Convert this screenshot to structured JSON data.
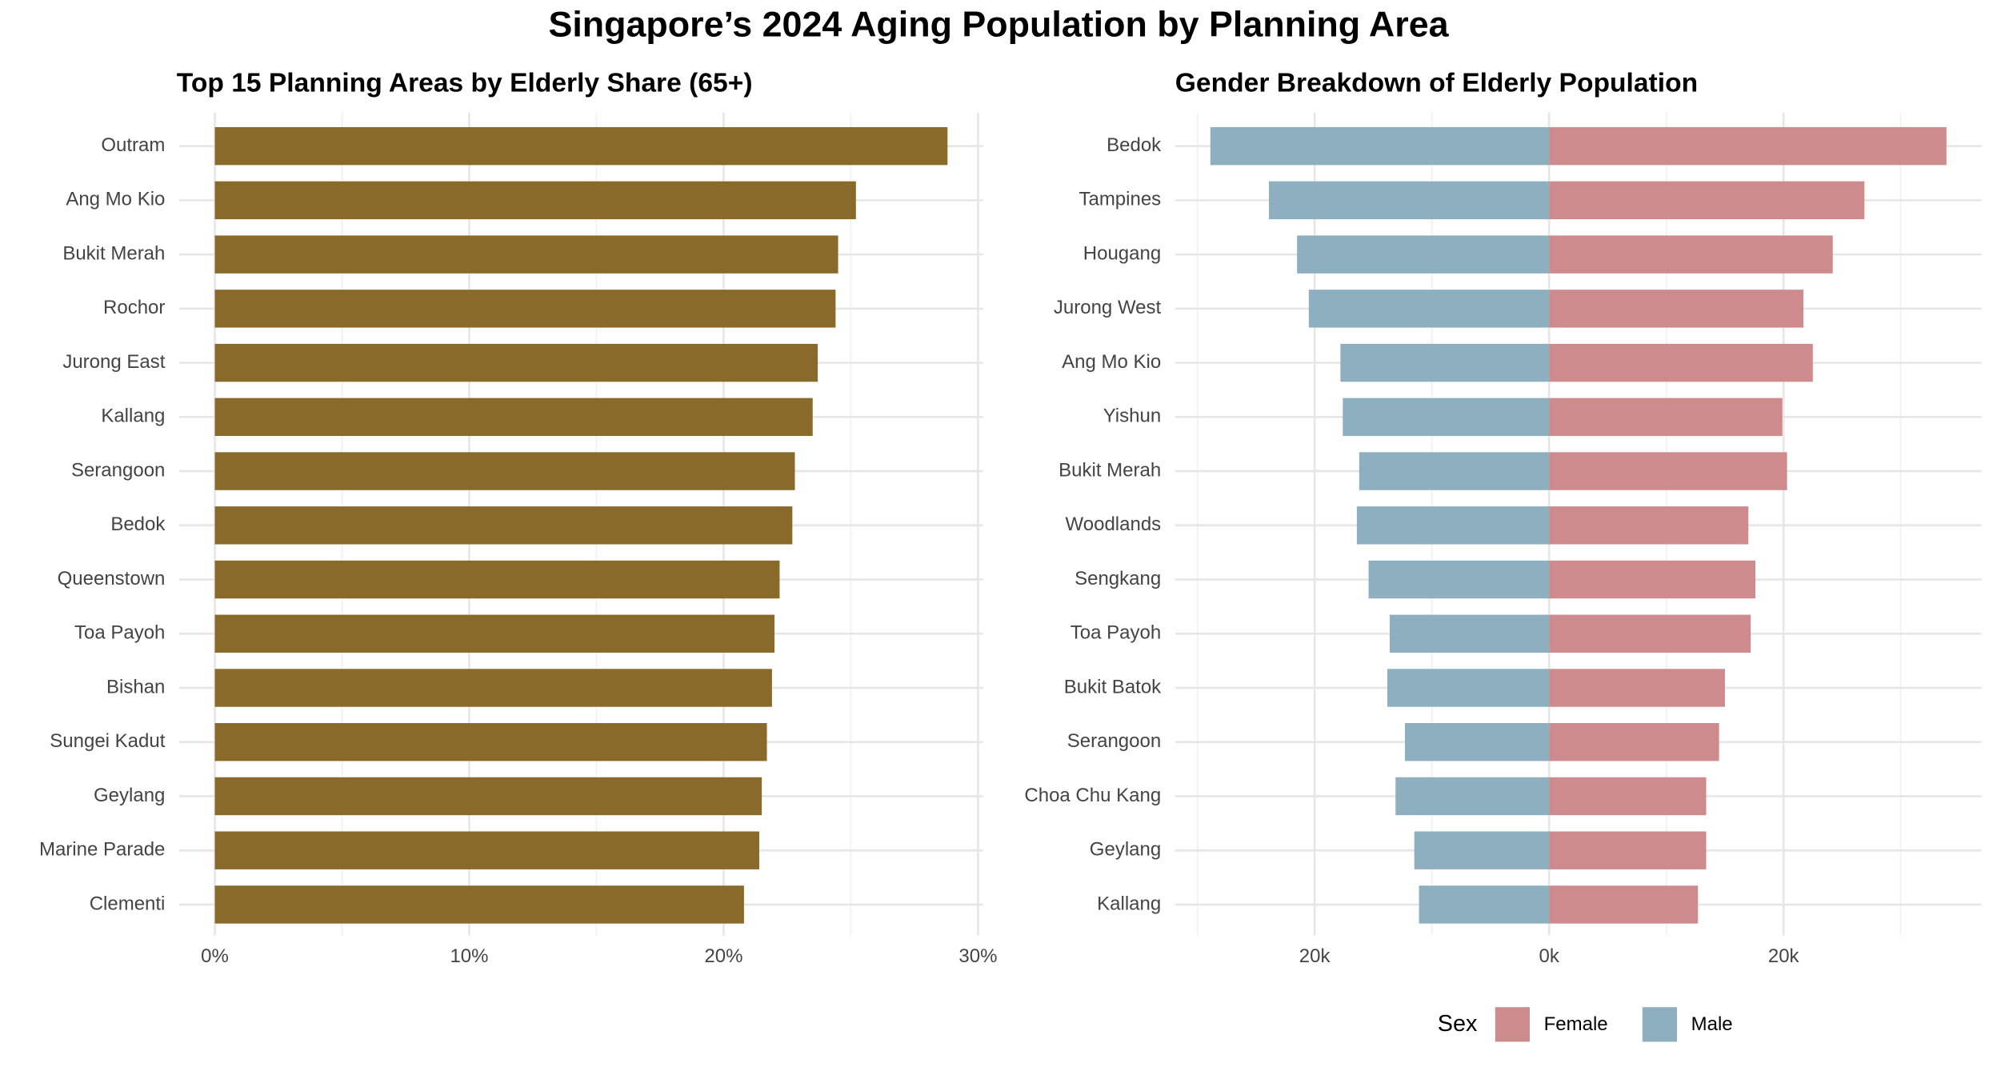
{
  "title": "Singapore’s 2024 Aging Population by Planning Area",
  "chart_data": [
    {
      "type": "bar",
      "title": "Top 15 Planning Areas by Elderly Share (65+)",
      "categories": [
        "Outram",
        "Ang Mo Kio",
        "Bukit Merah",
        "Rochor",
        "Jurong East",
        "Kallang",
        "Serangoon",
        "Bedok",
        "Queenstown",
        "Toa Payoh",
        "Bishan",
        "Sungei Kadut",
        "Geylang",
        "Marine Parade",
        "Clementi"
      ],
      "values": [
        28.8,
        25.2,
        24.5,
        24.4,
        23.7,
        23.5,
        22.8,
        22.7,
        22.2,
        22.0,
        21.9,
        21.7,
        21.5,
        21.4,
        20.8
      ],
      "color": "#8a6a2b",
      "xlim": [
        -1.4,
        30.2
      ],
      "xticks": [
        {
          "value": 0,
          "label": "0%"
        },
        {
          "value": 10,
          "label": "10%"
        },
        {
          "value": 20,
          "label": "20%"
        },
        {
          "value": 30,
          "label": "30%"
        }
      ],
      "minor_xticks": [
        5,
        15,
        25
      ],
      "grid": true
    },
    {
      "type": "diverging-bar",
      "title": "Gender Breakdown of Elderly Population",
      "categories": [
        "Bedok",
        "Tampines",
        "Hougang",
        "Jurong West",
        "Ang Mo Kio",
        "Yishun",
        "Bukit Merah",
        "Woodlands",
        "Sengkang",
        "Toa Payoh",
        "Bukit Batok",
        "Serangoon",
        "Choa Chu Kang",
        "Geylang",
        "Kallang"
      ],
      "series": [
        {
          "name": "Female",
          "color": "#cd8b8e",
          "values": [
            33900,
            26900,
            24200,
            21700,
            22500,
            19900,
            20300,
            17000,
            17600,
            17200,
            15000,
            14500,
            13400,
            13400,
            12700
          ]
        },
        {
          "name": "Male",
          "color": "#8eafc0",
          "values": [
            -28900,
            -23900,
            -21500,
            -20500,
            -17800,
            -17600,
            -16200,
            -16400,
            -15400,
            -13600,
            -13800,
            -12300,
            -13100,
            -11500,
            -11100
          ]
        }
      ],
      "xlim": [
        -31900,
        36900
      ],
      "xticks": [
        {
          "value": -20000,
          "label": "20k"
        },
        {
          "value": 0,
          "label": "0k"
        },
        {
          "value": 20000,
          "label": "20k"
        }
      ],
      "minor_xticks": [
        -30000,
        -10000,
        10000,
        30000
      ],
      "grid": true,
      "legend_title": "Sex",
      "legend": "bottom"
    }
  ]
}
